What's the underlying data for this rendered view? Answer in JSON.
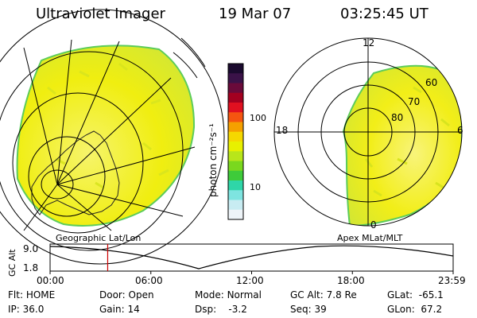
{
  "header": {
    "instrument": "Ultraviolet Imager",
    "date": "19 Mar 07",
    "time": "03:25:45 UT"
  },
  "left_panel": {
    "caption": "Geographic Lat/Lon"
  },
  "right_panel": {
    "caption": "Apex MLat/MLT",
    "mlt_labels": [
      "12",
      "18",
      "6",
      "0"
    ],
    "lat_labels": [
      "60",
      "70",
      "80"
    ]
  },
  "colorbar": {
    "unit_label": "photon cm⁻²s⁻¹",
    "tick_labels": [
      "100",
      "10"
    ],
    "colors": [
      "#1a0a2e",
      "#3a1248",
      "#6a0a3a",
      "#a30020",
      "#e01020",
      "#f55510",
      "#f5a000",
      "#f5d800",
      "#e8f000",
      "#b8e61a",
      "#7ad81e",
      "#3ecb3a",
      "#2fd6a8",
      "#7ee4e0",
      "#c8ecf2",
      "#eef4f8"
    ]
  },
  "altitude_strip": {
    "axis_label": "GC Alt",
    "y_ticks": [
      "9.0",
      "1.8"
    ],
    "x_ticks": [
      "00:00",
      "06:00",
      "12:00",
      "18:00",
      "23:59"
    ],
    "current_time_hours": 3.43
  },
  "status": {
    "row1": [
      {
        "label": "Flt:",
        "value": "HOME"
      },
      {
        "label": "Door:",
        "value": "Open"
      },
      {
        "label": "Mode:",
        "value": "Normal"
      },
      {
        "label": "GC Alt:",
        "value": "7.8 Re"
      },
      {
        "label": "GLat:",
        "value": "-65.1"
      }
    ],
    "row2": [
      {
        "label": "IP:",
        "value": "36.0"
      },
      {
        "label": "Gain:",
        "value": "14"
      },
      {
        "label": "Dsp:",
        "value": "-3.2"
      },
      {
        "label": "Seq:",
        "value": "39"
      },
      {
        "label": "GLon:",
        "value": "67.2"
      }
    ]
  },
  "colors": {
    "oval_yellow": "#f0ee00",
    "oval_light": "#f6f46a",
    "oval_green": "#c8e63a",
    "rim": "#5ccc5a",
    "tick_marker": "#cc0000"
  }
}
